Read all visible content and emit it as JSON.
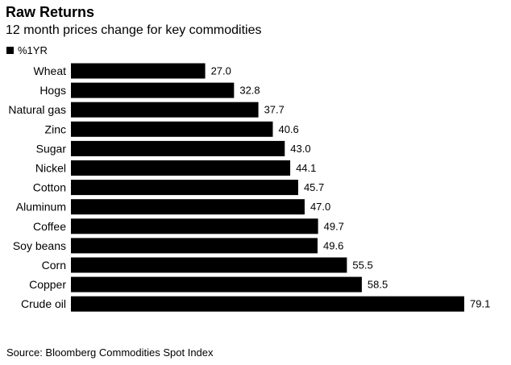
{
  "title": "Raw Returns",
  "subtitle": "12 month prices change for key commodities",
  "legend_label": "%1YR",
  "source": "Source: Bloomberg Commodities Spot Index",
  "colors": {
    "bar": "#000000",
    "text": "#000000"
  },
  "chart_data": {
    "type": "bar",
    "orientation": "horizontal",
    "categories": [
      "Wheat",
      "Hogs",
      "Natural gas",
      "Zinc",
      "Sugar",
      "Nickel",
      "Cotton",
      "Aluminum",
      "Coffee",
      "Soy beans",
      "Corn",
      "Copper",
      "Crude oil"
    ],
    "series": [
      {
        "name": "%1YR",
        "values": [
          27.0,
          32.8,
          37.7,
          40.6,
          43.0,
          44.1,
          45.7,
          47.0,
          49.7,
          49.6,
          55.5,
          58.5,
          79.1
        ]
      }
    ],
    "labels": [
      "27.0",
      "32.8",
      "37.7",
      "40.6",
      "43.0",
      "44.1",
      "45.7",
      "47.0",
      "49.7",
      "49.6",
      "55.5",
      "58.5",
      "79.1"
    ],
    "title": "Raw Returns",
    "xlabel": "",
    "ylabel": "",
    "xlim": [
      0,
      79.1
    ],
    "grid": false,
    "legend": "top-left"
  }
}
